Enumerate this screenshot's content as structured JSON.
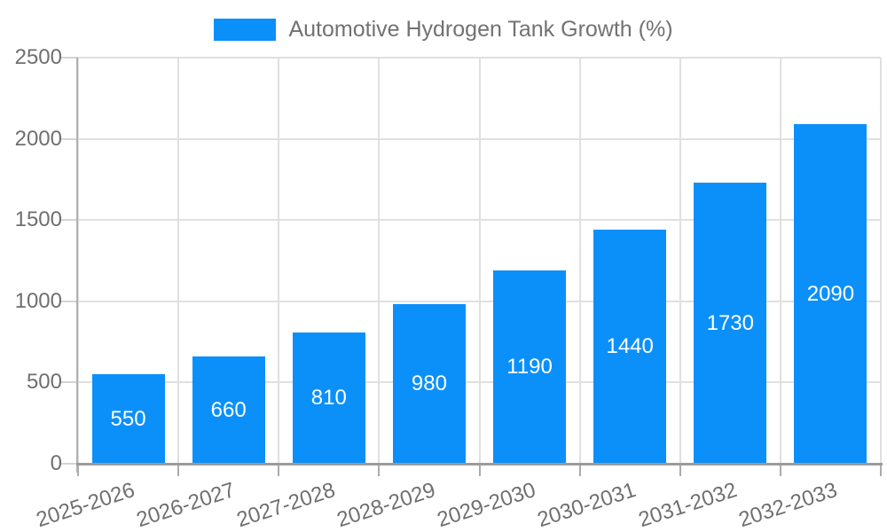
{
  "legend": {
    "label": "Automotive Hydrogen Tank Growth (%)"
  },
  "chart_data": {
    "type": "bar",
    "title": "Automotive Hydrogen Tank Growth (%)",
    "categories": [
      "2025-2026",
      "2026-2027",
      "2027-2028",
      "2028-2029",
      "2029-2030",
      "2030-2031",
      "2031-2032",
      "2032-2033"
    ],
    "values": [
      550,
      660,
      810,
      980,
      1190,
      1440,
      1730,
      2090
    ],
    "series_name": "Automotive Hydrogen Tank Growth (%)",
    "value_labels": [
      "550",
      "660",
      "810",
      "980",
      "1190",
      "1440",
      "1730",
      "2090"
    ],
    "xlabel": "",
    "ylabel": "",
    "ylim": [
      0,
      2500
    ],
    "yticks": [
      0,
      500,
      1000,
      1500,
      2000,
      2500
    ],
    "grid": true,
    "legend_position": "top-center",
    "bar_color": "#0b90fa",
    "value_label_color": "#ffffff",
    "grid_color": "#e0e0e0",
    "axis_text_color": "#6f6f6f"
  }
}
